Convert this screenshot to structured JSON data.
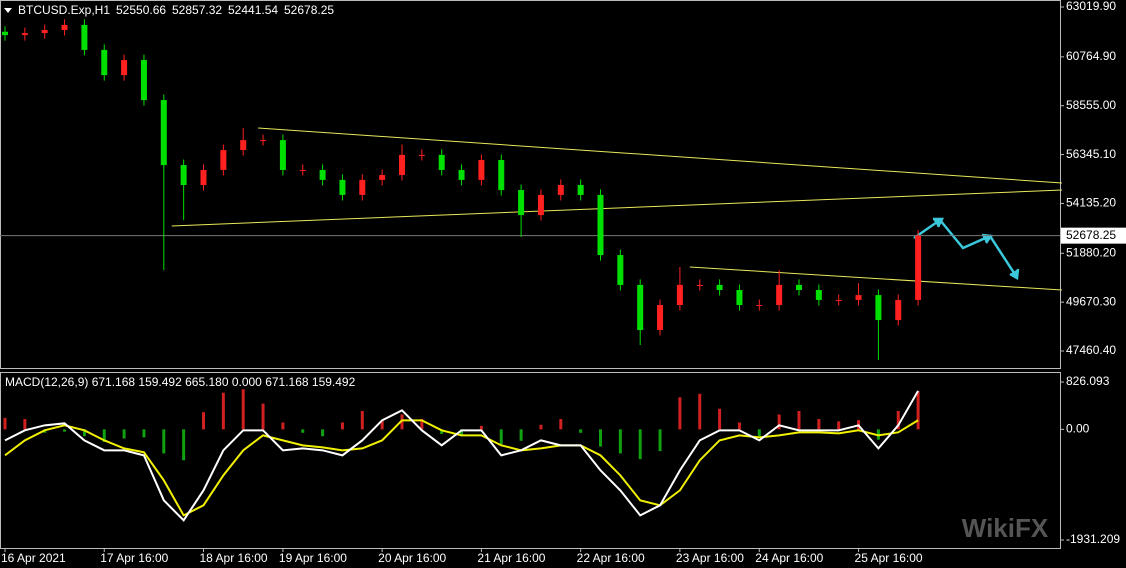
{
  "chart_data": [
    {
      "type": "candlestick",
      "title": "BTCUSD.Exp,H1",
      "ohlc_text": [
        "52550.66",
        "52857.32",
        "52441.54",
        "52678.25"
      ],
      "categories": [
        "16 Apr 2021",
        null,
        null,
        null,
        null,
        "17 Apr 16:00",
        null,
        null,
        null,
        null,
        "18 Apr 16:00",
        null,
        null,
        null,
        "19 Apr 16:00",
        null,
        null,
        null,
        null,
        "20 Apr 16:00",
        null,
        null,
        null,
        null,
        "21 Apr 16:00",
        null,
        null,
        null,
        null,
        "22 Apr 16:00",
        null,
        null,
        null,
        null,
        "23 Apr 16:00",
        null,
        null,
        null,
        "24 Apr 16:00",
        null,
        null,
        null,
        null,
        "25 Apr 16:00",
        null,
        null,
        null
      ],
      "open": [
        61900,
        61750,
        61840,
        61980,
        62210,
        61080,
        59940,
        60620,
        58810,
        55870,
        54970,
        55650,
        56550,
        57000,
        57000,
        55650,
        55650,
        55200,
        54520,
        55200,
        55420,
        56330,
        56330,
        55650,
        55200,
        56100,
        54740,
        53610,
        54520,
        54970,
        54520,
        51800,
        50450,
        48410,
        49540,
        50450,
        50450,
        50220,
        49540,
        49540,
        50450,
        50220,
        49770,
        49770,
        49990,
        48860,
        49770
      ],
      "high": [
        62150,
        62090,
        62230,
        62460,
        62460,
        61330,
        60870,
        60870,
        59060,
        56120,
        55900,
        56800,
        57550,
        57250,
        57250,
        55900,
        55900,
        55450,
        55450,
        55670,
        56800,
        56580,
        56580,
        55900,
        56350,
        56350,
        54990,
        54770,
        55220,
        55220,
        54770,
        52050,
        50700,
        49790,
        51260,
        50700,
        50700,
        50470,
        49790,
        51120,
        50700,
        50470,
        50020,
        50530,
        50240,
        50020,
        52930
      ],
      "low": [
        61500,
        61500,
        61590,
        61730,
        60830,
        59690,
        59690,
        58560,
        51120,
        53380,
        54720,
        55400,
        56300,
        56750,
        55400,
        55400,
        54950,
        54270,
        54270,
        54950,
        55170,
        56080,
        55400,
        54950,
        54950,
        54490,
        52620,
        53360,
        54270,
        54270,
        51550,
        50200,
        47730,
        48160,
        49290,
        50200,
        49970,
        49290,
        49290,
        49290,
        49970,
        49520,
        49520,
        49520,
        47050,
        48610,
        49520
      ],
      "close": [
        61750,
        61840,
        61980,
        62210,
        61080,
        59940,
        60620,
        58810,
        55870,
        54970,
        55650,
        56550,
        57000,
        57000,
        55650,
        55650,
        55200,
        54520,
        55200,
        55420,
        56330,
        56330,
        55650,
        55200,
        56100,
        54740,
        53610,
        54520,
        54970,
        54520,
        51800,
        50450,
        48410,
        49540,
        50450,
        50450,
        50220,
        49540,
        49540,
        50450,
        50220,
        49770,
        49770,
        49990,
        48860,
        49770,
        52678.25
      ],
      "up_color": "#ff2020",
      "down_color": "#00e000",
      "ylim": [
        46692,
        63337
      ],
      "yticks": [
        {
          "value": 63019.9,
          "label": "63019.90"
        },
        {
          "value": 60764.9,
          "label": "60764.90"
        },
        {
          "value": 58555.0,
          "label": "58555.00"
        },
        {
          "value": 56345.1,
          "label": "56345.10"
        },
        {
          "value": 54135.2,
          "label": "54135.20"
        },
        {
          "value": 51880.2,
          "label": "51880.20"
        },
        {
          "value": 49670.3,
          "label": "49670.30"
        },
        {
          "value": 47460.4,
          "label": "47460.40"
        }
      ],
      "last_price": {
        "value": 52678.25,
        "label": "52678.25"
      },
      "trendlines": [
        {
          "x": [
            12.75,
            53.25
          ],
          "values": [
            57547,
            55059
          ]
        },
        {
          "x": [
            8.4,
            53.25
          ],
          "values": [
            53115,
            54743
          ]
        },
        {
          "x": [
            34.5,
            53.25
          ],
          "values": [
            51260,
            50220
          ]
        }
      ],
      "trendline_color": "#e8e85a",
      "watermark": "WikiFX"
    },
    {
      "type": "macd",
      "title": "MACD(12,26,9) 671.168 159.492 665.180 0.000 671.168 159.492",
      "macd": [
        -192,
        -17,
        70,
        105,
        -192,
        -366,
        -366,
        -454,
        -1239,
        -1588,
        -1065,
        -366,
        -17,
        -17,
        -366,
        -332,
        -366,
        -454,
        -192,
        157,
        332,
        -17,
        -279,
        -17,
        -17,
        -454,
        -366,
        -192,
        -279,
        -279,
        -716,
        -1065,
        -1501,
        -1326,
        -716,
        -192,
        -17,
        -17,
        -192,
        70,
        -17,
        -17,
        -17,
        70,
        -332,
        70,
        671.168
      ],
      "signal": [
        -454,
        -192,
        -17,
        70,
        -17,
        -192,
        -332,
        -401,
        -890,
        -1501,
        -1326,
        -803,
        -366,
        -105,
        -192,
        -279,
        -314,
        -366,
        -332,
        -192,
        157,
        157,
        -17,
        -105,
        -105,
        -279,
        -366,
        -332,
        -279,
        -279,
        -454,
        -803,
        -1239,
        -1326,
        -1065,
        -541,
        -192,
        -105,
        -140,
        -105,
        -52,
        -52,
        -70,
        -17,
        -105,
        -52,
        159.492
      ],
      "histogram": [
        200,
        180,
        -60,
        -40,
        -120,
        -220,
        -160,
        -140,
        -420,
        -540,
        300,
        640,
        700,
        450,
        120,
        -60,
        -120,
        120,
        320,
        150,
        260,
        180,
        -80,
        -120,
        60,
        -260,
        -200,
        80,
        180,
        -60,
        -300,
        -420,
        -520,
        -380,
        560,
        620,
        360,
        120,
        -120,
        260,
        320,
        180,
        140,
        160,
        -180,
        320,
        665.18
      ],
      "macd_color": "#ffffff",
      "signal_color": "#f0f000",
      "pos_color": "#d02020",
      "neg_color": "#10a010",
      "ylim": [
        -2071,
        1001
      ],
      "yticks": [
        {
          "value": 826.093,
          "label": "826.093"
        },
        {
          "value": 0,
          "label": "0.00"
        },
        {
          "value": -1931.209,
          "label": "-1931.209"
        }
      ]
    }
  ]
}
